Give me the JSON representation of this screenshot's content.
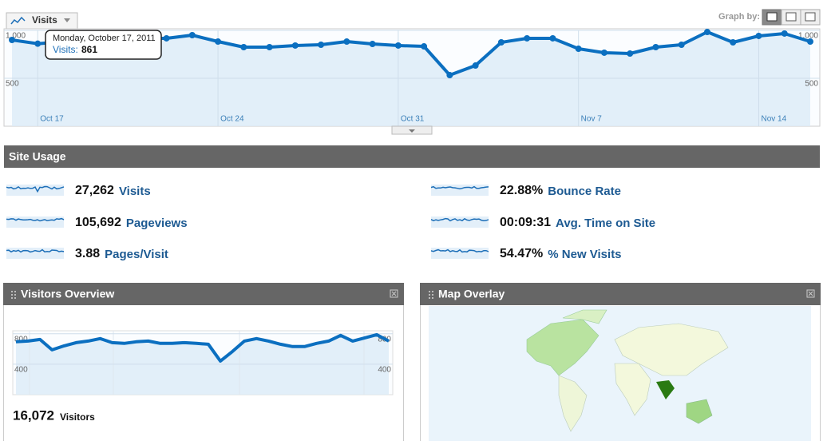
{
  "header": {
    "tab": "Visits",
    "graph_by": "Graph by:"
  },
  "chart_data": [
    {
      "type": "line",
      "categories": [
        null,
        "Oct 17",
        null,
        null,
        null,
        null,
        null,
        null,
        "Oct 24",
        null,
        null,
        null,
        null,
        null,
        null,
        "Oct 31",
        null,
        null,
        null,
        null,
        null,
        null,
        "Nov 7",
        null,
        null,
        null,
        null,
        null,
        null,
        "Nov 14",
        null,
        null
      ],
      "series": [
        {
          "name": "Visits",
          "color": "#0b6fc0",
          "values": [
            900,
            861,
            883,
            890,
            900,
            917,
            917,
            950,
            883,
            825,
            825,
            842,
            850,
            883,
            858,
            842,
            833,
            533,
            633,
            875,
            917,
            917,
            808,
            767,
            758,
            825,
            850,
            983,
            875,
            942,
            967,
            883
          ]
        }
      ],
      "ylim": [
        0,
        1000
      ],
      "yticks": [
        500,
        {
          "value": 1000,
          "label": "1,000"
        }
      ],
      "grid": true,
      "tooltip": {
        "title": "Monday, October 17, 2011",
        "label": "Visits:"
      }
    },
    {
      "type": "line",
      "series": [
        {
          "color": "#0b6fc0",
          "values": [
            695,
            705,
            726,
            589,
            642,
            684,
            705,
            737,
            684,
            674,
            695,
            705,
            674,
            674,
            684,
            674,
            663,
            442,
            568,
            705,
            737,
            705,
            663,
            632,
            632,
            674,
            705,
            779,
            705,
            747,
            789,
            705
          ]
        }
      ],
      "ylim": [
        0,
        840
      ],
      "yticks": [
        400,
        800
      ],
      "grid": true
    }
  ],
  "site_usage": {
    "title": "Site Usage",
    "metrics": [
      {
        "value": "27,262",
        "label": "Visits"
      },
      {
        "value": "105,692",
        "label": "Pageviews"
      },
      {
        "value": "3.88",
        "label": "Pages/Visit"
      },
      {
        "value": "22.88%",
        "label": "Bounce Rate"
      },
      {
        "value": "00:09:31",
        "label": "Avg. Time on Site"
      },
      {
        "value": "54.47%",
        "label": "% New Visits"
      }
    ]
  },
  "widgets": {
    "visitors_overview": {
      "title": "Visitors Overview",
      "total": "16,072",
      "total_label": "Visitors"
    },
    "map_overlay": {
      "title": "Map Overlay"
    }
  }
}
